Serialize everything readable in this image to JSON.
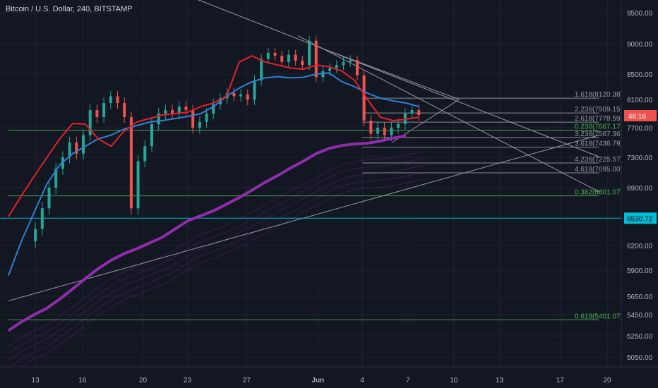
{
  "header": {
    "symbol_title": "Bitcoin / U.S. Dollar, 240, BITSTAMP"
  },
  "colors": {
    "background": "#131722",
    "grid": "#1f2330",
    "up": "#26a69a",
    "down": "#ef5350",
    "ema_red": "#e5202a",
    "ema_blue": "#2f80d1",
    "ema_purple": "#8e2dab",
    "fib_line": "#9598a1",
    "fib_text": "#9598a1",
    "green_line": "#3aa33e",
    "green_text": "#4caf50",
    "cyan": "#00bcd4",
    "trend": "#9598a1",
    "axis_text": "#b2b5be"
  },
  "chart_data": {
    "type": "candlestick",
    "ylim": [
      4850,
      9750
    ],
    "xlim": [
      0,
      45.5
    ],
    "y_ticks": [
      "9500.00",
      "9000.00",
      "8500.00",
      "8100.00",
      "7700.00",
      "7300.00",
      "6900.00",
      "6200.00",
      "5900.00",
      "5650.00",
      "5450.00",
      "5250.00",
      "5050.00"
    ],
    "x_ticks": [
      {
        "label": "13",
        "x": 2
      },
      {
        "label": "16",
        "x": 5.5
      },
      {
        "label": "20",
        "x": 10
      },
      {
        "label": "23",
        "x": 13.3
      },
      {
        "label": "27",
        "x": 17.7
      },
      {
        "label": "Jun",
        "x": 23
      },
      {
        "label": "4",
        "x": 26.3
      },
      {
        "label": "7",
        "x": 29.7
      },
      {
        "label": "10",
        "x": 33.1
      },
      {
        "label": "13",
        "x": 36.5
      },
      {
        "label": "17",
        "x": 41
      },
      {
        "label": "20",
        "x": 44.5
      }
    ],
    "candles_close": [
      6400,
      6650,
      6900,
      7150,
      7300,
      7500,
      7350,
      7600,
      7950,
      7850,
      8050,
      8150,
      8050,
      7850,
      6650,
      7250,
      7450,
      7750,
      7900,
      7950,
      7900,
      8000,
      7950,
      7700,
      7780,
      7900,
      8030,
      8120,
      8200,
      8150,
      8180,
      8100,
      8400,
      8750,
      8850,
      8800,
      8700,
      8820,
      8720,
      8650,
      9050,
      8450,
      8550,
      8600,
      8650,
      8700,
      8730,
      8480,
      7800,
      7620,
      7700,
      7600,
      7700,
      7750,
      7900,
      7950,
      7880
    ],
    "ema_red": [
      [
        0,
        6550
      ],
      [
        1,
        6800
      ],
      [
        2,
        7050
      ],
      [
        3,
        7300
      ],
      [
        4,
        7550
      ],
      [
        5,
        7760
      ],
      [
        6,
        7750
      ],
      [
        7,
        7550
      ],
      [
        8,
        7450
      ],
      [
        9,
        7650
      ],
      [
        10,
        7780
      ],
      [
        11,
        7830
      ],
      [
        12,
        7880
      ],
      [
        13,
        7900
      ],
      [
        14,
        7920
      ],
      [
        15,
        8000
      ],
      [
        16,
        8050
      ],
      [
        17,
        8150
      ],
      [
        18,
        8700
      ],
      [
        19,
        8800
      ],
      [
        20,
        8700
      ],
      [
        21,
        8650
      ],
      [
        22,
        8600
      ],
      [
        23,
        8580
      ],
      [
        24,
        8650
      ],
      [
        25,
        8620
      ],
      [
        26,
        8550
      ],
      [
        27,
        8400
      ],
      [
        28,
        8100
      ],
      [
        29,
        7850
      ],
      [
        30,
        7800
      ],
      [
        31,
        7820
      ],
      [
        32,
        7850
      ]
    ],
    "ema_blue": [
      [
        0,
        5850
      ],
      [
        1,
        6250
      ],
      [
        2,
        6600
      ],
      [
        3,
        6950
      ],
      [
        4,
        7200
      ],
      [
        5,
        7350
      ],
      [
        6,
        7450
      ],
      [
        7,
        7550
      ],
      [
        8,
        7600
      ],
      [
        9,
        7680
      ],
      [
        10,
        7730
      ],
      [
        11,
        7780
      ],
      [
        12,
        7800
      ],
      [
        13,
        7830
      ],
      [
        14,
        7860
      ],
      [
        15,
        7900
      ],
      [
        16,
        8000
      ],
      [
        17,
        8150
      ],
      [
        18,
        8280
      ],
      [
        19,
        8380
      ],
      [
        20,
        8440
      ],
      [
        21,
        8460
      ],
      [
        22,
        8440
      ],
      [
        23,
        8450
      ],
      [
        24,
        8500
      ],
      [
        25,
        8520
      ],
      [
        26,
        8380
      ],
      [
        27,
        8300
      ],
      [
        28,
        8200
      ],
      [
        29,
        8120
      ],
      [
        30,
        8080
      ],
      [
        31,
        8050
      ],
      [
        32,
        8000
      ]
    ],
    "ema_purple": [
      [
        0,
        5300
      ],
      [
        1,
        5380
      ],
      [
        2,
        5450
      ],
      [
        3,
        5520
      ],
      [
        4,
        5620
      ],
      [
        5,
        5720
      ],
      [
        6,
        5820
      ],
      [
        7,
        5920
      ],
      [
        8,
        6020
      ],
      [
        9,
        6100
      ],
      [
        10,
        6160
      ],
      [
        11,
        6230
      ],
      [
        12,
        6300
      ],
      [
        13,
        6400
      ],
      [
        14,
        6500
      ],
      [
        15,
        6560
      ],
      [
        16,
        6620
      ],
      [
        17,
        6700
      ],
      [
        18,
        6780
      ],
      [
        19,
        6870
      ],
      [
        20,
        6970
      ],
      [
        21,
        7060
      ],
      [
        22,
        7160
      ],
      [
        23,
        7250
      ],
      [
        24,
        7350
      ],
      [
        25,
        7420
      ],
      [
        26,
        7460
      ],
      [
        27,
        7480
      ],
      [
        28,
        7490
      ],
      [
        29,
        7520
      ],
      [
        30,
        7560
      ],
      [
        31,
        7590
      ]
    ],
    "fib_levels": [
      {
        "label": "1.618(8120.38)",
        "y": 8120.38,
        "color": "#9598a1",
        "x1": 26.3,
        "x2": 43.9
      },
      {
        "label": "2.236(7909.15)",
        "y": 7909.15,
        "color": "#9598a1",
        "x1": 26.3,
        "x2": 43.9
      },
      {
        "label": "2.618(7778.59)",
        "y": 7778.59,
        "color": "#9598a1",
        "x1": 26.3,
        "x2": 43.9
      },
      {
        "label": "0.236(7667.17)",
        "y": 7667.17,
        "color": "#4caf50",
        "x1": 0,
        "x2": 43.9
      },
      {
        "label": "3.236(7567.36)",
        "y": 7567.36,
        "color": "#9598a1",
        "x1": 26.3,
        "x2": 43.9
      },
      {
        "label": "3.618(7436.79)",
        "y": 7436.79,
        "color": "#9598a1",
        "x1": 26.3,
        "x2": 43.9
      },
      {
        "label": "4.236(7225.57)",
        "y": 7225.57,
        "color": "#9598a1",
        "x1": 26.3,
        "x2": 43.9
      },
      {
        "label": "4.618(7095.00)",
        "y": 7095.0,
        "color": "#9598a1",
        "x1": 26.3,
        "x2": 43.9
      },
      {
        "label": "0.382(6801.07)",
        "y": 6801.07,
        "color": "#4caf50",
        "x1": 0,
        "x2": 43.9
      },
      {
        "label": "0.618(5401.07)",
        "y": 5401.07,
        "color": "#4caf50",
        "x1": 0,
        "x2": 43.9
      }
    ],
    "cyan_line": {
      "y": 6530.72,
      "label": "6530.72"
    },
    "last_price": {
      "y": 7870,
      "label": "46:16"
    },
    "trendlines": [
      {
        "p1": [
          13.6,
          9750
        ],
        "p2": [
          44,
          7300
        ]
      },
      {
        "p1": [
          21.5,
          9130
        ],
        "p2": [
          43.9,
          6850
        ]
      },
      {
        "p1": [
          23,
          8950
        ],
        "p2": [
          33.5,
          8100
        ]
      },
      {
        "p1": [
          0,
          5600
        ],
        "p2": [
          43.9,
          7600
        ]
      },
      {
        "p1": [
          28.5,
          7500
        ],
        "p2": [
          33.5,
          8100
        ]
      }
    ]
  }
}
